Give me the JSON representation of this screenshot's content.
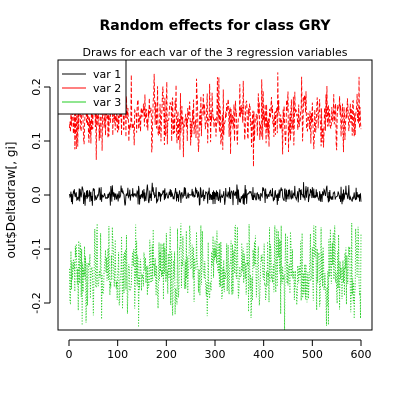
{
  "chart_data": {
    "type": "line",
    "title": "Random effects for class GRY",
    "subtitle": "Draws for each var of the 3 regression variables",
    "ylabel": "out$Deltadraw[, gi]",
    "xlabel": "",
    "xlim": [
      0,
      600
    ],
    "ylim": [
      -0.25,
      0.25
    ],
    "x_ticks": [
      "0",
      "100",
      "200",
      "300",
      "400",
      "500",
      "600"
    ],
    "y_ticks": [
      "-0.2",
      "-0.1",
      "0.0",
      "0.1",
      "0.2"
    ],
    "legend_position": "top-left",
    "n_draws": 600,
    "series": [
      {
        "name": "var 1",
        "color": "#000000",
        "line": "solid",
        "mean": 0.0,
        "spread": 0.008,
        "min": -0.02,
        "max": 0.025
      },
      {
        "name": "var 2",
        "color": "#ff0000",
        "line": "dashed",
        "mean": 0.145,
        "spread": 0.03,
        "min": 0.05,
        "max": 0.23
      },
      {
        "name": "var 3",
        "color": "#22cc22",
        "line": "dotted",
        "mean": -0.14,
        "spread": 0.04,
        "min": -0.25,
        "max": -0.05
      }
    ]
  }
}
